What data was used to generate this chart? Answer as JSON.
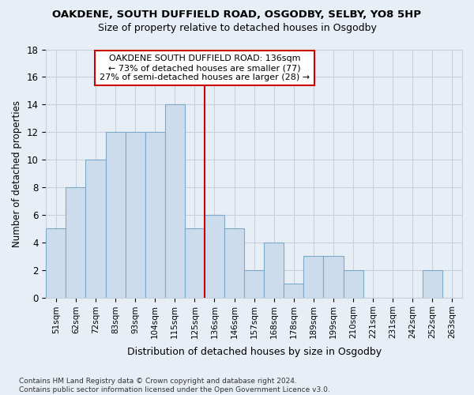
{
  "title1": "OAKDENE, SOUTH DUFFIELD ROAD, OSGODBY, SELBY, YO8 5HP",
  "title2": "Size of property relative to detached houses in Osgodby",
  "xlabel": "Distribution of detached houses by size in Osgodby",
  "ylabel": "Number of detached properties",
  "footnote": "Contains HM Land Registry data © Crown copyright and database right 2024.\nContains public sector information licensed under the Open Government Licence v3.0.",
  "bin_labels": [
    "51sqm",
    "62sqm",
    "72sqm",
    "83sqm",
    "93sqm",
    "104sqm",
    "115sqm",
    "125sqm",
    "136sqm",
    "146sqm",
    "157sqm",
    "168sqm",
    "178sqm",
    "189sqm",
    "199sqm",
    "210sqm",
    "221sqm",
    "231sqm",
    "242sqm",
    "252sqm",
    "263sqm"
  ],
  "bar_heights": [
    5,
    8,
    10,
    12,
    12,
    12,
    14,
    5,
    6,
    5,
    2,
    4,
    1,
    3,
    3,
    2,
    0,
    0,
    0,
    2,
    0
  ],
  "bar_color": "#ccdcec",
  "bar_edgecolor": "#7aaac8",
  "vline_index": 8,
  "annotation_line1": "OAKDENE SOUTH DUFFIELD ROAD: 136sqm",
  "annotation_line2": "← 73% of detached houses are smaller (77)",
  "annotation_line3": "27% of semi-detached houses are larger (28) →",
  "annotation_box_color": "#cc0000",
  "ylim": [
    0,
    18
  ],
  "yticks": [
    0,
    2,
    4,
    6,
    8,
    10,
    12,
    14,
    16,
    18
  ],
  "grid_color": "#c8d0dc",
  "bg_color": "#e8eef5",
  "plot_bg": "#e8eef5",
  "figsize": [
    6.0,
    5.0
  ],
  "dpi": 100
}
